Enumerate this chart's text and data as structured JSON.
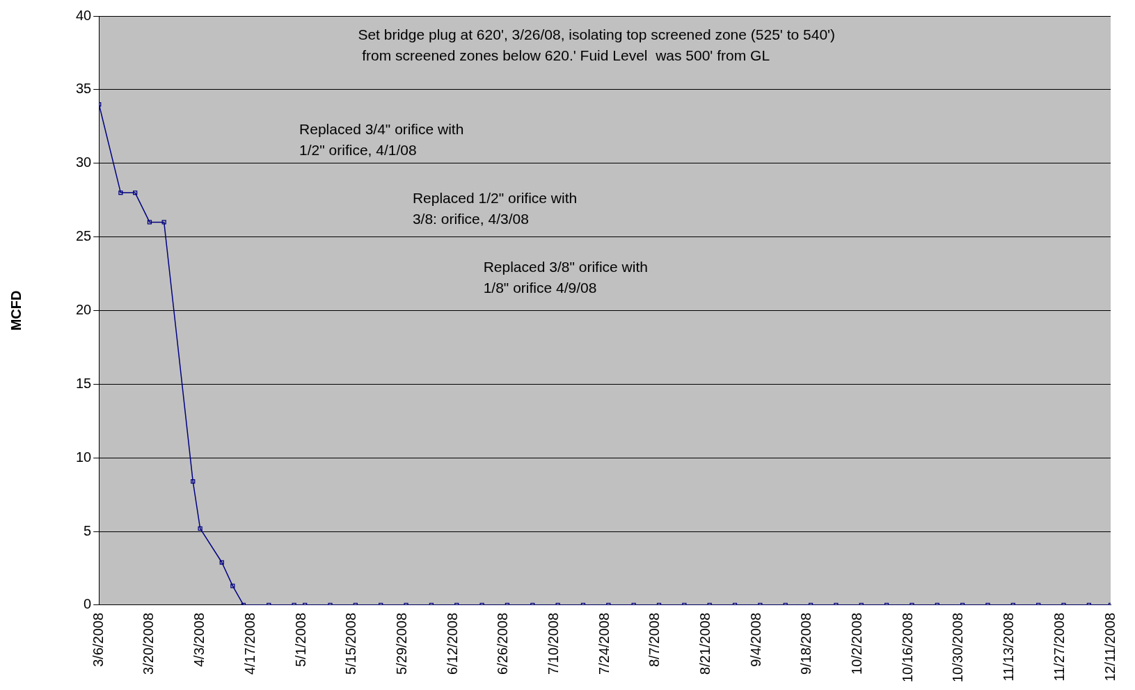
{
  "chart_data": {
    "type": "line",
    "ylabel": "MCFD",
    "x": [
      "2008-03-06",
      "2008-03-12",
      "2008-03-16",
      "2008-03-20",
      "2008-03-24",
      "2008-04-01",
      "2008-04-03",
      "2008-04-09",
      "2008-04-12",
      "2008-04-15",
      "2008-04-22",
      "2008-04-29",
      "2008-05-02",
      "2008-05-09",
      "2008-05-16",
      "2008-05-23",
      "2008-05-30",
      "2008-06-06",
      "2008-06-13",
      "2008-06-20",
      "2008-06-27",
      "2008-07-04",
      "2008-07-11",
      "2008-07-18",
      "2008-07-25",
      "2008-08-01",
      "2008-08-08",
      "2008-08-15",
      "2008-08-22",
      "2008-08-29",
      "2008-09-05",
      "2008-09-12",
      "2008-09-19",
      "2008-09-26",
      "2008-10-03",
      "2008-10-10",
      "2008-10-17",
      "2008-10-24",
      "2008-10-31",
      "2008-11-07",
      "2008-11-14",
      "2008-11-21",
      "2008-11-28",
      "2008-12-05",
      "2008-12-11"
    ],
    "series": [
      {
        "color": "#000080",
        "values": [
          34,
          28,
          28,
          26,
          26,
          8.4,
          5.2,
          2.9,
          1.3,
          0,
          0,
          0,
          0,
          0,
          0,
          0,
          0,
          0,
          0,
          0,
          0,
          0,
          0,
          0,
          0,
          0,
          0,
          0,
          0,
          0,
          0,
          0,
          0,
          0,
          0,
          0,
          0,
          0,
          0,
          0,
          0,
          0,
          0,
          0,
          0
        ]
      }
    ],
    "xlim": [
      "2008-03-06",
      "2008-12-11"
    ],
    "xticks": [
      {
        "value": "2008-03-06",
        "label": "3/6/2008"
      },
      {
        "value": "2008-03-20",
        "label": "3/20/2008"
      },
      {
        "value": "2008-04-03",
        "label": "4/3/2008"
      },
      {
        "value": "2008-04-17",
        "label": "4/17/2008"
      },
      {
        "value": "2008-05-01",
        "label": "5/1/2008"
      },
      {
        "value": "2008-05-15",
        "label": "5/15/2008"
      },
      {
        "value": "2008-05-29",
        "label": "5/29/2008"
      },
      {
        "value": "2008-06-12",
        "label": "6/12/2008"
      },
      {
        "value": "2008-06-26",
        "label": "6/26/2008"
      },
      {
        "value": "2008-07-10",
        "label": "7/10/2008"
      },
      {
        "value": "2008-07-24",
        "label": "7/24/2008"
      },
      {
        "value": "2008-08-07",
        "label": "8/7/2008"
      },
      {
        "value": "2008-08-21",
        "label": "8/21/2008"
      },
      {
        "value": "2008-09-04",
        "label": "9/4/2008"
      },
      {
        "value": "2008-09-18",
        "label": "9/18/2008"
      },
      {
        "value": "2008-10-02",
        "label": "10/2/2008"
      },
      {
        "value": "2008-10-16",
        "label": "10/16/2008"
      },
      {
        "value": "2008-10-30",
        "label": "10/30/2008"
      },
      {
        "value": "2008-11-13",
        "label": "11/13/2008"
      },
      {
        "value": "2008-11-27",
        "label": "11/27/2008"
      },
      {
        "value": "2008-12-11",
        "label": "12/11/2008"
      }
    ],
    "ylim": [
      0,
      40
    ],
    "yticks": [
      0,
      5,
      10,
      15,
      20,
      25,
      30,
      35,
      40
    ],
    "grid": "y",
    "marker": "square",
    "line_style": "solid",
    "legend": false,
    "annotations": [
      "Set bridge plug at 620', 3/26/08, isolating top screened zone (525' to 540')\n from screened zones below 620.' Fuid Level  was 500' from GL",
      "Replaced 3/4\" orifice with\n1/2\" orifice, 4/1/08",
      "Replaced 1/2\" orifice with\n3/8: orifice, 4/3/08",
      "Replaced 3/8\" orifice with\n1/8\" orifice 4/9/08"
    ]
  }
}
